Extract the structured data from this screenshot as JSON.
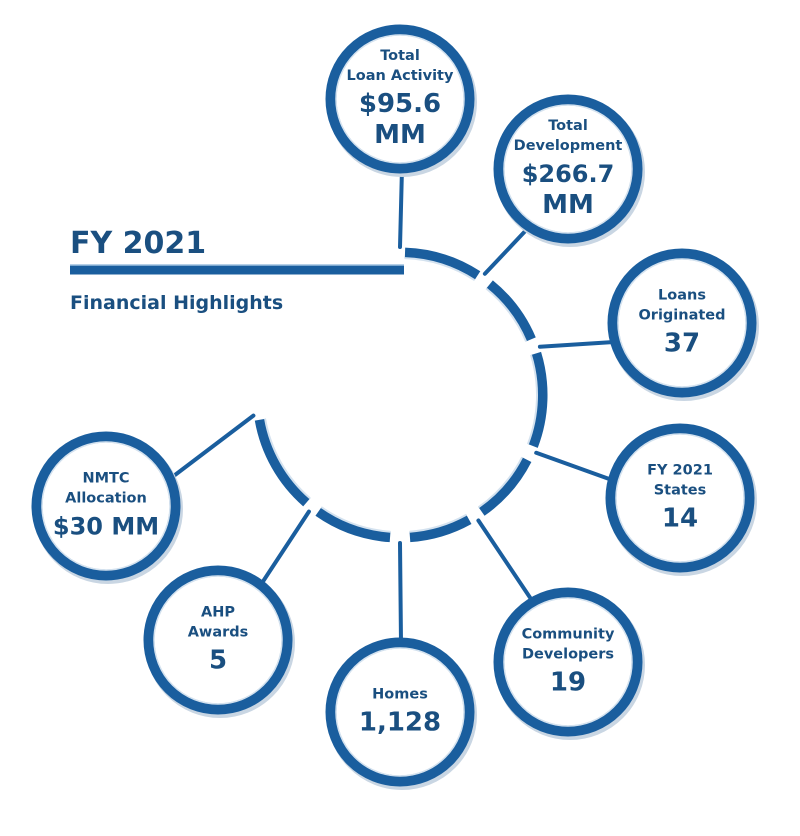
{
  "header": {
    "title": "FY 2021",
    "subtitle": "Financial Highlights"
  },
  "colors": {
    "primary": "#1a5e9e",
    "text": "#1a4f80",
    "inner_ring": "#d4e2ef"
  },
  "highlights": [
    {
      "id": "total-loan-activity",
      "label_lines": [
        "Total",
        "Loan Activity"
      ],
      "value_lines": [
        "$95.6",
        "MM"
      ]
    },
    {
      "id": "total-development",
      "label_lines": [
        "Total",
        "Development"
      ],
      "value_lines": [
        "$266.7",
        "MM"
      ]
    },
    {
      "id": "loans-originated",
      "label_lines": [
        "Loans",
        "Originated"
      ],
      "value_lines": [
        "37"
      ]
    },
    {
      "id": "fy2021-states",
      "label_lines": [
        "FY 2021",
        "States"
      ],
      "value_lines": [
        "14"
      ]
    },
    {
      "id": "community-developers",
      "label_lines": [
        "Community",
        "Developers"
      ],
      "value_lines": [
        "19"
      ]
    },
    {
      "id": "homes",
      "label_lines": [
        "Homes"
      ],
      "value_lines": [
        "1,128"
      ]
    },
    {
      "id": "ahp-awards",
      "label_lines": [
        "AHP",
        "Awards"
      ],
      "value_lines": [
        "5"
      ]
    },
    {
      "id": "nmtc-allocation",
      "label_lines": [
        "NMTC",
        "Allocation"
      ],
      "value_lines": [
        "$30 MM"
      ]
    }
  ]
}
